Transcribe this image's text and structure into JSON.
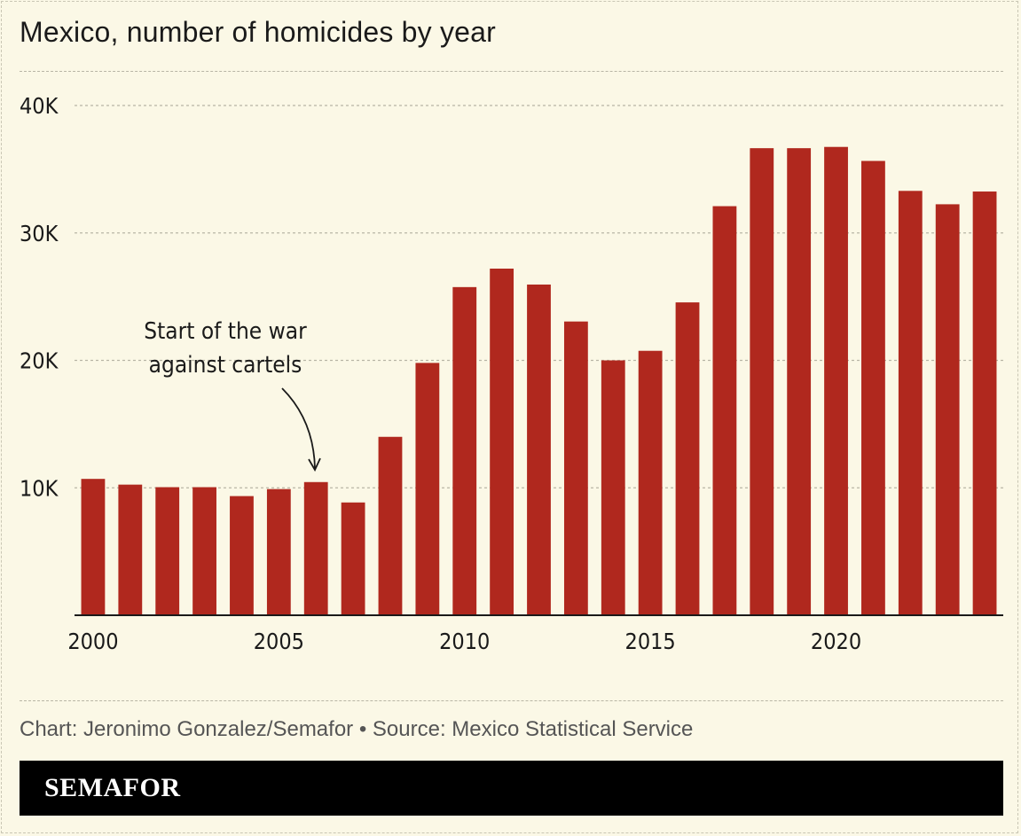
{
  "title": "Mexico, number of homicides by year",
  "source": "Chart: Jeronimo Gonzalez/Semafor • Source: Mexico Statistical Service",
  "brand": "SEMAFOR",
  "colors": {
    "bar": "#b0281e",
    "background": "#fbf8e6",
    "brand_bar": "#000000"
  },
  "chart_data": {
    "type": "bar",
    "title": "Mexico, number of homicides by year",
    "xlabel": "",
    "ylabel": "",
    "categories": [
      2000,
      2001,
      2002,
      2003,
      2004,
      2005,
      2006,
      2007,
      2008,
      2009,
      2010,
      2011,
      2012,
      2013,
      2014,
      2015,
      2016,
      2017,
      2018,
      2019,
      2020,
      2021,
      2022,
      2023,
      2024
    ],
    "values": [
      10700,
      10250,
      10050,
      10050,
      9350,
      9900,
      10450,
      8850,
      14000,
      19800,
      25750,
      27200,
      25950,
      23050,
      20000,
      20750,
      24550,
      32100,
      36650,
      36650,
      36750,
      35650,
      33300,
      32250,
      33250
    ],
    "ylim": [
      0,
      40000
    ],
    "yticks": [
      10000,
      20000,
      30000,
      40000
    ],
    "ytick_labels": [
      "10K",
      "20K",
      "30K",
      "40K"
    ],
    "xticks": [
      2000,
      2005,
      2010,
      2015,
      2020
    ],
    "xtick_labels": [
      "2000",
      "2005",
      "2010",
      "2015",
      "2020"
    ],
    "grid": true,
    "annotation": {
      "text_line1": "Start of the war",
      "text_line2": "against cartels",
      "year": 2006
    }
  }
}
